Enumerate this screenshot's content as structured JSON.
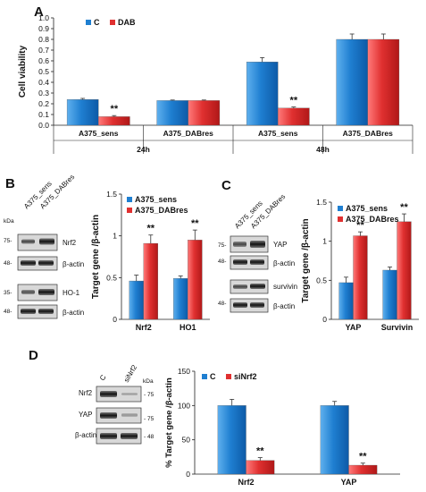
{
  "panels": {
    "A": "A",
    "B": "B",
    "C": "C",
    "D": "D"
  },
  "colors": {
    "control_blue": "#1f7fd1",
    "treated_red": "#e03030",
    "bar_edge": "#333333"
  },
  "chart_data": [
    {
      "panel": "A",
      "type": "bar",
      "title": "",
      "xlabel": "",
      "ylabel": "Cell viability",
      "ylim": [
        0,
        1.0
      ],
      "yticks": [
        "0.0",
        "0.1",
        "0.2",
        "0.3",
        "0.4",
        "0.5",
        "0.6",
        "0.7",
        "0.8",
        "0.9",
        "1.0"
      ],
      "grid": false,
      "legend_position": "top-left",
      "categories": [
        "A375_sens",
        "A375_DABres",
        "A375_sens",
        "A375_DABres"
      ],
      "groups": [
        "24h",
        "48h"
      ],
      "series": [
        {
          "name": "C",
          "color": "#1f7fd1",
          "values": [
            0.24,
            0.23,
            0.59,
            0.8
          ],
          "errors": [
            0.01,
            0.005,
            0.04,
            0.05
          ]
        },
        {
          "name": "DAB",
          "color": "#e03030",
          "values": [
            0.08,
            0.23,
            0.16,
            0.8
          ],
          "errors": [
            0.01,
            0.005,
            0.01,
            0.05
          ]
        }
      ],
      "annotations": [
        {
          "series": 1,
          "category": 0,
          "text": "**"
        },
        {
          "series": 1,
          "category": 2,
          "text": "**"
        }
      ]
    },
    {
      "panel": "B",
      "type": "bar",
      "title": "",
      "xlabel": "",
      "ylabel": "Target gene /β-actin",
      "ylim": [
        0,
        1.5
      ],
      "yticks": [
        "0",
        "0.5",
        "1",
        "1.5"
      ],
      "grid": false,
      "legend_position": "top-left",
      "categories": [
        "Nrf2",
        "HO1"
      ],
      "series": [
        {
          "name": "A375_sens",
          "color": "#1f7fd1",
          "values": [
            0.46,
            0.49
          ],
          "errors": [
            0.07,
            0.03
          ]
        },
        {
          "name": "A375_DABres",
          "color": "#e03030",
          "values": [
            0.91,
            0.95
          ],
          "errors": [
            0.1,
            0.12
          ]
        }
      ],
      "annotations": [
        {
          "series": 1,
          "category": 0,
          "text": "**"
        },
        {
          "series": 1,
          "category": 1,
          "text": "**"
        }
      ]
    },
    {
      "panel": "C",
      "type": "bar",
      "title": "",
      "xlabel": "",
      "ylabel": "Target gene /β-actin",
      "ylim": [
        0,
        1.5
      ],
      "yticks": [
        "0",
        "0.5",
        "1",
        "1.5"
      ],
      "grid": false,
      "legend_position": "top-left",
      "categories": [
        "YAP",
        "Survivin"
      ],
      "series": [
        {
          "name": "A375_sens",
          "color": "#1f7fd1",
          "values": [
            0.47,
            0.63
          ],
          "errors": [
            0.07,
            0.04
          ]
        },
        {
          "name": "A375_DABres",
          "color": "#e03030",
          "values": [
            1.07,
            1.25
          ],
          "errors": [
            0.05,
            0.1
          ]
        }
      ],
      "annotations": [
        {
          "series": 1,
          "category": 0,
          "text": "**"
        },
        {
          "series": 1,
          "category": 1,
          "text": "**"
        }
      ]
    },
    {
      "panel": "D",
      "type": "bar",
      "title": "",
      "xlabel": "",
      "ylabel": "% Target gene /β-actin",
      "ylim": [
        0,
        150
      ],
      "yticks": [
        "0",
        "50",
        "100",
        "150"
      ],
      "grid": false,
      "legend_position": "top-left",
      "categories": [
        "Nrf2",
        "YAP"
      ],
      "series": [
        {
          "name": "C",
          "color": "#1f7fd1",
          "values": [
            100,
            100
          ],
          "errors": [
            9,
            6
          ]
        },
        {
          "name": "siNrf2",
          "color": "#e03030",
          "values": [
            20,
            13
          ],
          "errors": [
            4,
            3
          ]
        }
      ],
      "annotations": [
        {
          "series": 1,
          "category": 0,
          "text": "**"
        },
        {
          "series": 1,
          "category": 1,
          "text": "**"
        }
      ]
    }
  ],
  "blots": {
    "B": {
      "kda": "kDa",
      "lanes": [
        "A375_sens",
        "A375_DABres"
      ],
      "rows": [
        {
          "label": "Nrf2",
          "marker": "75-"
        },
        {
          "label": "β-actin",
          "marker": "48-"
        },
        {
          "label": "HO-1",
          "marker": "35-"
        },
        {
          "label": "β-actin",
          "marker": "48-"
        }
      ]
    },
    "C": {
      "lanes": [
        "A375_sens",
        "A375_DABres"
      ],
      "rows": [
        {
          "label": "YAP",
          "marker": "75-"
        },
        {
          "label": "β-actin",
          "marker": "48-"
        },
        {
          "label": "survivin",
          "marker": ""
        },
        {
          "label": "β-actin",
          "marker": "48-"
        }
      ]
    },
    "D": {
      "kda": "kDa",
      "lanes": [
        "C",
        "siNrf2"
      ],
      "rows": [
        {
          "label": "Nrf2",
          "marker": "- 75"
        },
        {
          "label": "YAP",
          "marker": "- 75"
        },
        {
          "label": "β-actin",
          "marker": "- 48"
        }
      ]
    }
  }
}
